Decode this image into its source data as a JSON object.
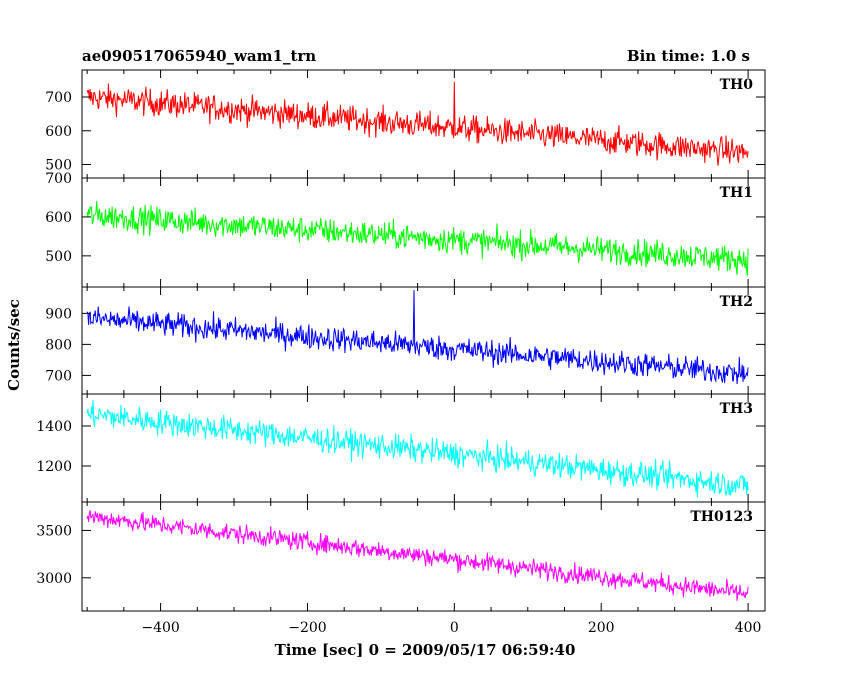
{
  "header": {
    "title": "ae090517065940_wam1_trn",
    "bin_time": "Bin time: 1.0 s"
  },
  "chart_data": {
    "type": "line",
    "xlabel": "Time [sec] 0 = 2009/05/17 06:59:40",
    "ylabel": "Counts/sec",
    "xlim": [
      -507,
      423
    ],
    "x_ticks": [
      -400,
      -200,
      0,
      200,
      400
    ],
    "x_range": [
      -500,
      400
    ],
    "panels": [
      {
        "name": "TH0",
        "color": "#ff0000",
        "ylim": [
          460,
          780
        ],
        "y_ticks": [
          500,
          600,
          700
        ],
        "start": 700,
        "end": 535,
        "noise": 28,
        "spike_at": 0,
        "spike_val": 745
      },
      {
        "name": "TH1",
        "color": "#00ff00",
        "ylim": [
          420,
          700
        ],
        "y_ticks": [
          500,
          600,
          700
        ],
        "start": 605,
        "end": 490,
        "noise": 24,
        "spike_at": null,
        "spike_val": null
      },
      {
        "name": "TH2",
        "color": "#0000ff",
        "ylim": [
          640,
          985
        ],
        "y_ticks": [
          700,
          800,
          900
        ],
        "start": 885,
        "end": 705,
        "noise": 28,
        "spike_at": -55,
        "spike_val": 975
      },
      {
        "name": "TH3",
        "color": "#00ffff",
        "ylim": [
          1020,
          1560
        ],
        "y_ticks": [
          1200,
          1400
        ],
        "start": 1460,
        "end": 1100,
        "noise": 45,
        "spike_at": null,
        "spike_val": null
      },
      {
        "name": "TH0123",
        "color": "#ff00ff",
        "ylim": [
          2650,
          3800
        ],
        "y_ticks": [
          3000,
          3500
        ],
        "start": 3650,
        "end": 2830,
        "noise": 70,
        "spike_at": null,
        "spike_val": null
      }
    ]
  }
}
